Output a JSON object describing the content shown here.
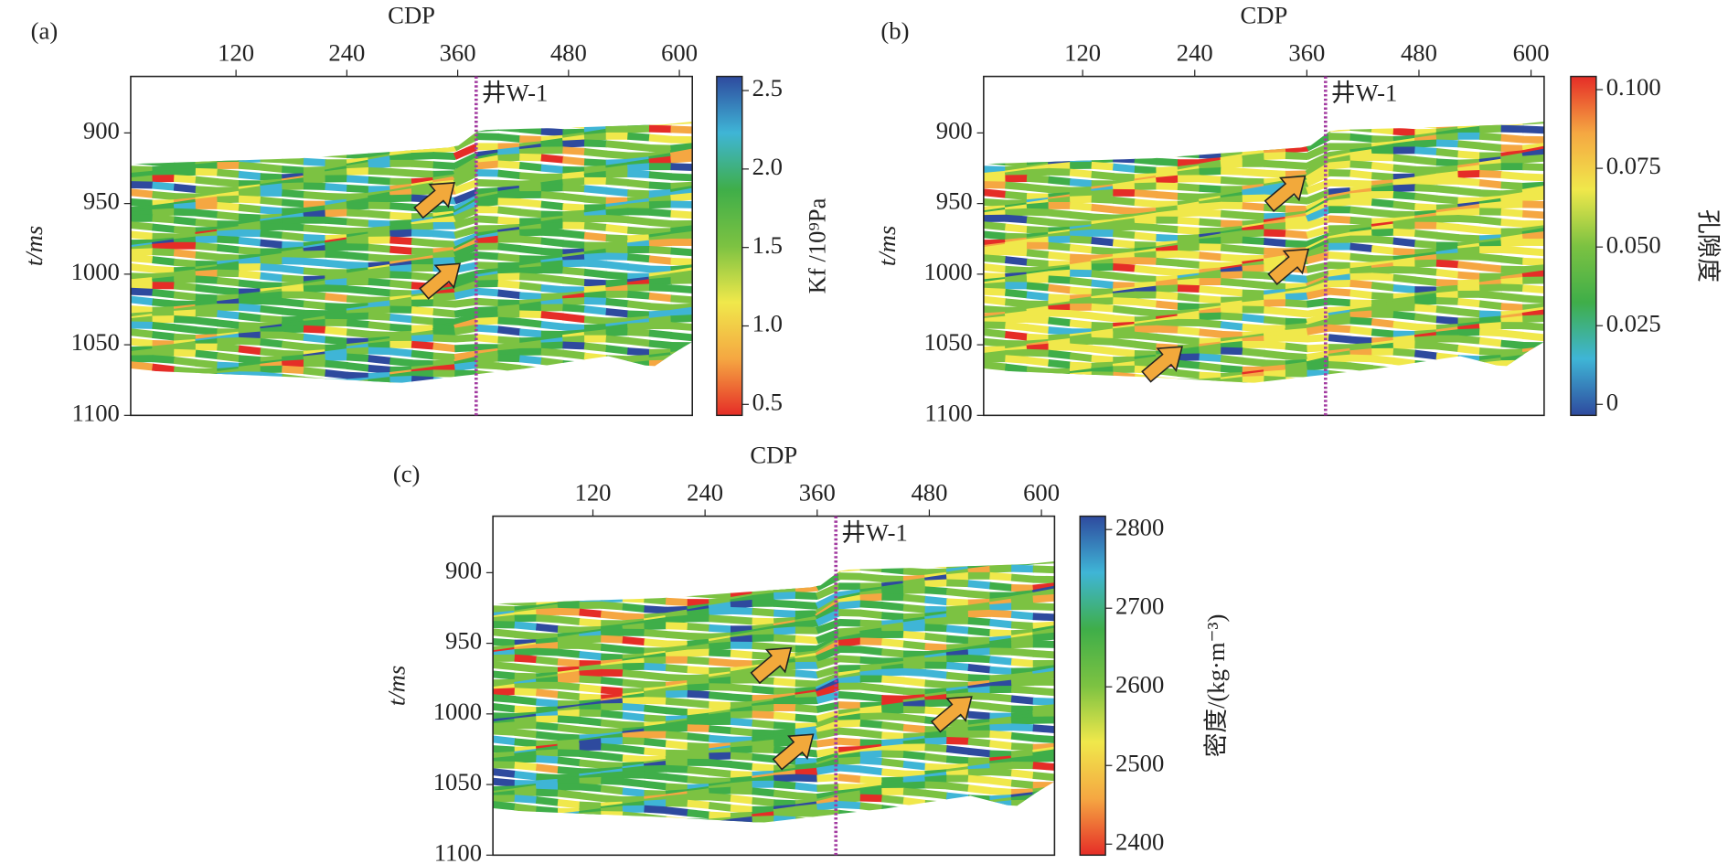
{
  "chart_data": [
    {
      "type": "heatmap",
      "panel_label": "(a)",
      "x_label": "CDP",
      "y_label": "t/ms",
      "colorbar_label": "Kf /10⁹Pa",
      "xlim": [
        6,
        614
      ],
      "xticks": [
        120,
        240,
        360,
        480,
        600
      ],
      "ylim": [
        860,
        1100
      ],
      "yticks": [
        900,
        950,
        1000,
        1050,
        1100
      ],
      "y_inverted": true,
      "clim": [
        0.43,
        2.59
      ],
      "cticks": [
        {
          "value": 2.5,
          "label": "2.5"
        },
        {
          "value": 2,
          "label": "2.0"
        },
        1.5,
        {
          "value": 1,
          "label": "1.0"
        },
        0.5
      ],
      "colormap": [
        "#e52d27",
        "#f5a742",
        "#f0e84b",
        "#7cc242",
        "#3fae49",
        "#3fb5d6",
        "#2e4a9e"
      ],
      "well": {
        "label": "井W-1",
        "cdp": 380,
        "color": "#a23aa0"
      }
    },
    {
      "type": "heatmap",
      "panel_label": "(b)",
      "x_label": "CDP",
      "y_label": "t/ms",
      "colorbar_label": "孔隙度",
      "xlim": [
        14,
        614
      ],
      "xticks": [
        120,
        240,
        360,
        480,
        600
      ],
      "ylim": [
        860,
        1100
      ],
      "yticks": [
        900,
        950,
        1000,
        1050,
        1100
      ],
      "y_inverted": true,
      "clim": [
        -0.0035,
        0.1042
      ],
      "cticks": [
        {
          "value": 0.1,
          "label": "0.100"
        },
        0.075,
        {
          "value": 0.05,
          "label": "0.050"
        },
        0.025,
        0
      ],
      "colormap": [
        "#2e4a9e",
        "#3fb5d6",
        "#3fae49",
        "#7cc242",
        "#f0e84b",
        "#f5a742",
        "#e52d27"
      ],
      "well": {
        "label": "井W-1",
        "cdp": 380,
        "color": "#a23aa0"
      }
    },
    {
      "type": "heatmap",
      "panel_label": "(c)",
      "x_label": "CDP",
      "y_label": "t/ms",
      "colorbar_label": "密度/(kg·m⁻³)",
      "xlim": [
        13,
        614
      ],
      "xticks": [
        120,
        240,
        360,
        480,
        600
      ],
      "ylim": [
        860,
        1100
      ],
      "yticks": [
        900,
        950,
        1000,
        1050,
        1100
      ],
      "y_inverted": true,
      "clim": [
        2386,
        2817
      ],
      "cticks": [
        2800,
        2700,
        2600,
        2500,
        2400
      ],
      "colormap": [
        "#e52d27",
        "#f5a742",
        "#f0e84b",
        "#7cc242",
        "#3fae49",
        "#3fb5d6",
        "#2e4a9e"
      ],
      "well": {
        "label": "井W-1",
        "cdp": 380,
        "color": "#a23aa0"
      }
    }
  ]
}
